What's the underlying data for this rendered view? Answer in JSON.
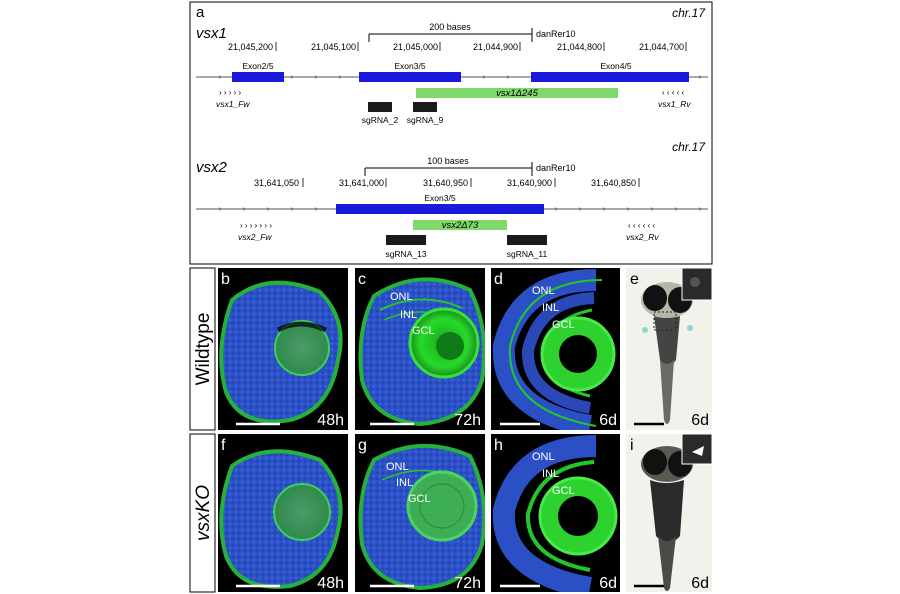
{
  "panel_a": {
    "letter": "a",
    "vsx1": {
      "gene": "vsx1",
      "chromosome": "chr.17",
      "scale_label": "200 bases",
      "assembly": "danRer10",
      "coords": [
        "21,045,200",
        "21,045,100",
        "21,045,000",
        "21,044,900",
        "21,044,800",
        "21,044,700"
      ],
      "exons": [
        "Exon2/5",
        "Exon3/5",
        "Exon4/5"
      ],
      "deletion": "vsx1Δ245",
      "primer_fw": "vsx1_Fw",
      "primer_rv": "vsx1_Rv",
      "fw_arrows": "› › › › ›",
      "rv_arrows": "‹ ‹ ‹ ‹ ‹",
      "sgrnas": [
        "sgRNA_2",
        "sgRNA_9"
      ]
    },
    "vsx2": {
      "gene": "vsx2",
      "chromosome": "chr.17",
      "scale_label": "100 bases",
      "assembly": "danRer10",
      "coords": [
        "31,641,050",
        "31,641,000",
        "31,640,950",
        "31,640,900",
        "31,640,850"
      ],
      "exon": "Exon3/5",
      "deletion": "vsx2Δ73",
      "primer_fw": "vsx2_Fw",
      "primer_rv": "vsx2_Rv",
      "fw_arrows": "› › › › › › ›",
      "rv_arrows": "‹ ‹ ‹ ‹ ‹ ‹",
      "sgrnas": [
        "sgRNA_13",
        "sgRNA_11"
      ]
    }
  },
  "rows": {
    "wildtype_label": "Wildtype",
    "ko_label": "vsxKO"
  },
  "panels": {
    "b": {
      "letter": "b",
      "time": "48h"
    },
    "c": {
      "letter": "c",
      "time": "72h",
      "layers": [
        "ONL",
        "INL",
        "GCL"
      ]
    },
    "d": {
      "letter": "d",
      "time": "6d",
      "layers": [
        "ONL",
        "INL",
        "GCL"
      ]
    },
    "e": {
      "letter": "e",
      "time": "6d"
    },
    "f": {
      "letter": "f",
      "time": "48h"
    },
    "g": {
      "letter": "g",
      "time": "72h",
      "layers": [
        "ONL",
        "INL",
        "GCL"
      ]
    },
    "h": {
      "letter": "h",
      "time": "6d",
      "layers": [
        "ONL",
        "INL",
        "GCL"
      ]
    },
    "i": {
      "letter": "i",
      "time": "6d"
    }
  },
  "colors": {
    "exon": "#1a1adc",
    "deletion": "#7ed86a",
    "sgrna": "#1a1a1a",
    "nuclei": "#2a4fc8",
    "membrane": "#22c82a"
  }
}
